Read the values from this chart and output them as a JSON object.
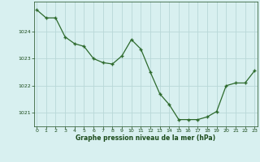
{
  "x": [
    0,
    1,
    2,
    3,
    4,
    5,
    6,
    7,
    8,
    9,
    10,
    11,
    12,
    13,
    14,
    15,
    16,
    17,
    18,
    19,
    20,
    21,
    22,
    23
  ],
  "y": [
    1024.8,
    1024.5,
    1024.5,
    1023.8,
    1023.55,
    1023.45,
    1023.0,
    1022.85,
    1022.8,
    1023.1,
    1023.7,
    1023.35,
    1022.5,
    1021.7,
    1021.3,
    1020.75,
    1020.75,
    1020.75,
    1020.85,
    1021.05,
    1022.0,
    1022.1,
    1022.1,
    1022.55
  ],
  "line_color": "#2d6a2d",
  "marker_color": "#2d6a2d",
  "bg_color": "#d8f0f0",
  "grid_color": "#b8d8d8",
  "axis_label_color": "#1a4a1a",
  "tick_label_color": "#1a4a1a",
  "xlabel": "Graphe pression niveau de la mer (hPa)",
  "ylim": [
    1020.5,
    1025.1
  ],
  "yticks": [
    1021,
    1022,
    1023,
    1024
  ],
  "xticks": [
    0,
    1,
    2,
    3,
    4,
    5,
    6,
    7,
    8,
    9,
    10,
    11,
    12,
    13,
    14,
    15,
    16,
    17,
    18,
    19,
    20,
    21,
    22,
    23
  ],
  "figsize": [
    3.2,
    2.0
  ],
  "dpi": 100
}
